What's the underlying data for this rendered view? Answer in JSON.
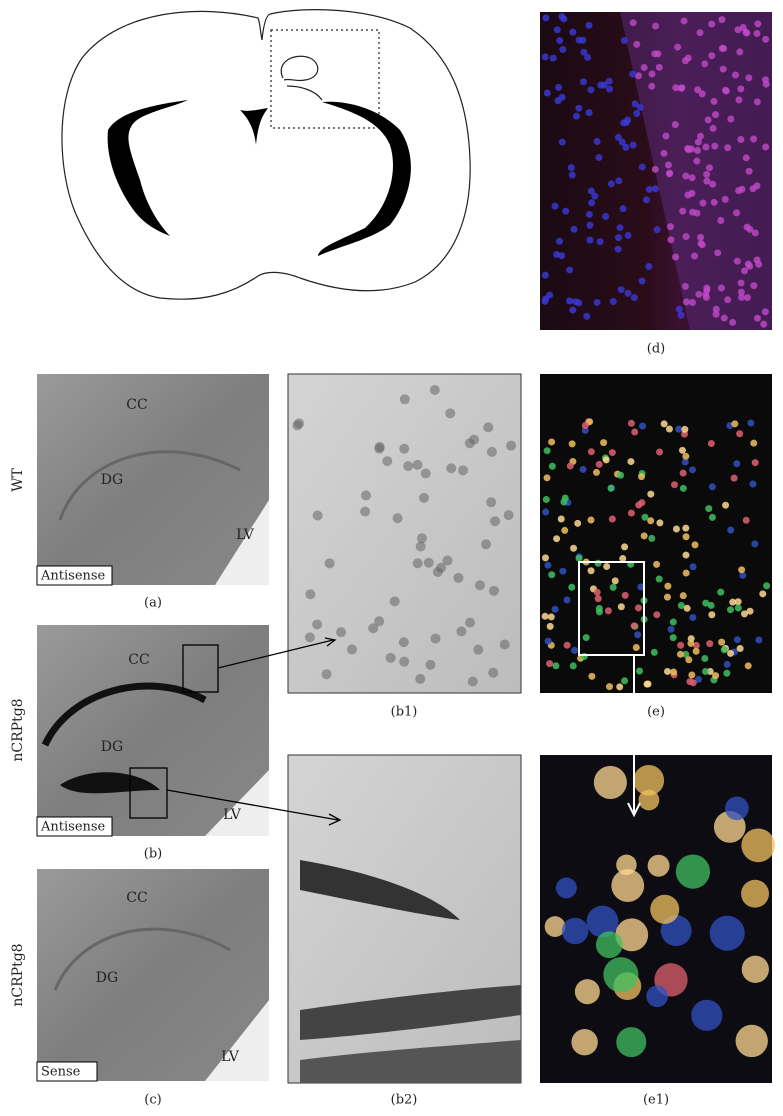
{
  "row_labels": [
    "WT",
    "nCRPtg8",
    "nCRPtg8"
  ],
  "panels": {
    "a": {
      "label": "(a)",
      "cc": "CC",
      "dg": "DG",
      "lv": "LV",
      "probe": "Antisense"
    },
    "b": {
      "label": "(b)",
      "cc": "CC",
      "dg": "DG",
      "lv": "LV",
      "probe": "Antisense"
    },
    "c": {
      "label": "(c)",
      "cc": "CC",
      "dg": "DG",
      "lv": "LV",
      "probe": "Sense"
    },
    "b1": {
      "label": "(b1)"
    },
    "b2": {
      "label": "(b2)"
    },
    "d": {
      "label": "(d)"
    },
    "e": {
      "label": "(e)"
    },
    "e1": {
      "label": "(e1)"
    }
  }
}
